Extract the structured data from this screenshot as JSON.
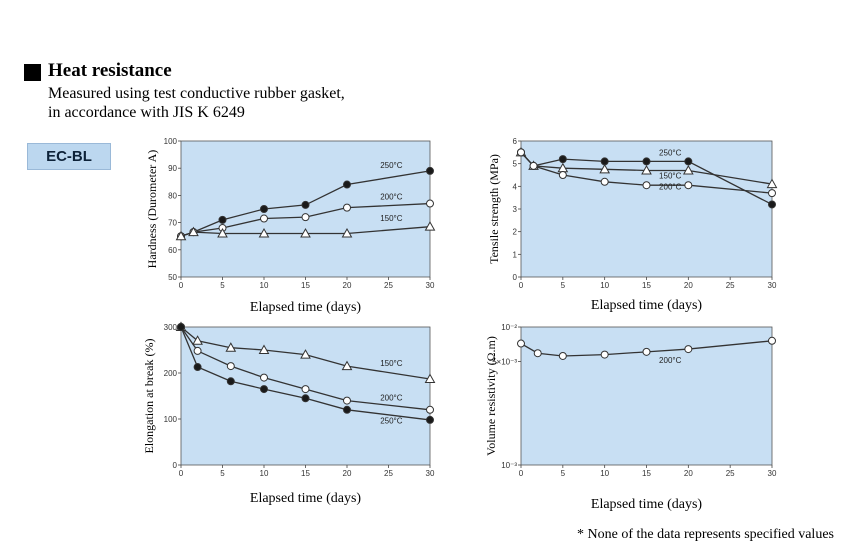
{
  "header": {
    "title": "Heat resistance",
    "description_line1": "Measured using test conductive rubber gasket,",
    "description_line2": "in accordance with JIS K 6249"
  },
  "badge": {
    "label": "EC-BL"
  },
  "note": "* None of the data represents specified values",
  "colors": {
    "plot_bg": "#c8dff3",
    "badge_bg": "#bcd7ef",
    "line": "#333333"
  },
  "chart_data": [
    {
      "id": "hardness",
      "type": "line",
      "ylabel": "Hardness (Durometer A)",
      "xlabel": "Elapsed time (days)",
      "xlim": [
        0,
        30
      ],
      "ylim": [
        50,
        100
      ],
      "x_ticks": [
        0,
        5,
        10,
        15,
        20,
        25,
        30
      ],
      "y_ticks": [
        50,
        60,
        70,
        80,
        90,
        100
      ],
      "y_tick_labels": [
        "50",
        "60",
        "70",
        "80",
        "90",
        "100"
      ],
      "series": [
        {
          "name": "250°C",
          "marker": "filled-circle",
          "x": [
            0,
            1.5,
            5,
            10,
            15,
            20,
            30
          ],
          "y": [
            65,
            66.5,
            71,
            75,
            76.5,
            84,
            89
          ]
        },
        {
          "name": "200°C",
          "marker": "open-circle",
          "x": [
            0,
            1.5,
            5,
            10,
            15,
            20,
            30
          ],
          "y": [
            65,
            66.5,
            68,
            71.5,
            72,
            75.5,
            77
          ]
        },
        {
          "name": "150°C",
          "marker": "open-triangle",
          "x": [
            0,
            1.5,
            5,
            10,
            15,
            20,
            30
          ],
          "y": [
            65,
            66.5,
            66,
            66,
            66,
            66,
            68.5
          ]
        }
      ],
      "annotations": [
        {
          "text": "250°C",
          "x": 24,
          "y": 90
        },
        {
          "text": "200°C",
          "x": 24,
          "y": 78.5
        },
        {
          "text": "150°C",
          "x": 24,
          "y": 70.5
        }
      ]
    },
    {
      "id": "tensile",
      "type": "line",
      "ylabel": "Tensile strength (MPa)",
      "xlabel": "Elapsed time (days)",
      "xlim": [
        0,
        30
      ],
      "ylim": [
        0,
        6
      ],
      "x_ticks": [
        0,
        5,
        10,
        15,
        20,
        25,
        30
      ],
      "y_ticks": [
        0,
        1,
        2,
        3,
        4,
        5,
        6
      ],
      "y_tick_labels": [
        "0",
        "1",
        "2",
        "3",
        "4",
        "5",
        "6"
      ],
      "series": [
        {
          "name": "250°C",
          "marker": "filled-circle",
          "x": [
            0,
            1.5,
            5,
            10,
            15,
            20,
            30
          ],
          "y": [
            5.5,
            4.9,
            5.2,
            5.1,
            5.1,
            5.1,
            3.2
          ]
        },
        {
          "name": "150°C",
          "marker": "open-triangle",
          "x": [
            0,
            1.5,
            5,
            10,
            15,
            20,
            30
          ],
          "y": [
            5.5,
            4.9,
            4.8,
            4.75,
            4.7,
            4.7,
            4.1
          ]
        },
        {
          "name": "200°C",
          "marker": "open-circle",
          "x": [
            0,
            1.5,
            5,
            10,
            15,
            20,
            30
          ],
          "y": [
            5.5,
            4.9,
            4.5,
            4.2,
            4.05,
            4.05,
            3.7
          ]
        }
      ],
      "annotations": [
        {
          "text": "250°C",
          "x": 16.5,
          "y": 5.35
        },
        {
          "text": "150°C",
          "x": 16.5,
          "y": 4.35
        },
        {
          "text": "200°C",
          "x": 16.5,
          "y": 3.85
        }
      ]
    },
    {
      "id": "elongation",
      "type": "line",
      "ylabel": "Elongation at break (%)",
      "xlabel": "Elapsed time (days)",
      "xlim": [
        0,
        30
      ],
      "ylim": [
        0,
        300
      ],
      "x_ticks": [
        0,
        5,
        10,
        15,
        20,
        25,
        30
      ],
      "y_ticks": [
        0,
        100,
        200,
        300
      ],
      "y_tick_labels": [
        "0",
        "100",
        "200",
        "300"
      ],
      "series": [
        {
          "name": "150°C",
          "marker": "open-triangle",
          "x": [
            0,
            2,
            6,
            10,
            15,
            20,
            30
          ],
          "y": [
            300,
            270,
            255,
            250,
            240,
            215,
            187
          ]
        },
        {
          "name": "200°C",
          "marker": "open-circle",
          "x": [
            0,
            2,
            6,
            10,
            15,
            20,
            30
          ],
          "y": [
            300,
            248,
            215,
            190,
            165,
            140,
            120
          ]
        },
        {
          "name": "250°C",
          "marker": "filled-circle",
          "x": [
            0,
            2,
            6,
            10,
            15,
            20,
            30
          ],
          "y": [
            300,
            213,
            182,
            165,
            145,
            120,
            98
          ]
        }
      ],
      "annotations": [
        {
          "text": "150°C",
          "x": 24,
          "y": 215
        },
        {
          "text": "200°C",
          "x": 24,
          "y": 140
        },
        {
          "text": "250°C",
          "x": 24,
          "y": 90
        }
      ]
    },
    {
      "id": "volume",
      "type": "line",
      "ylabel": "Volume resistivity (Ω.m)",
      "xlabel": "Elapsed time (days)",
      "xlim": [
        0,
        30
      ],
      "ylim": [
        0,
        100
      ],
      "x_ticks": [
        0,
        5,
        10,
        15,
        20,
        25,
        30
      ],
      "y_ticks": [
        0,
        75,
        100
      ],
      "y_tick_labels": [
        "10⁻³",
        "5×10⁻³",
        "10⁻²"
      ],
      "series": [
        {
          "name": "200°C",
          "marker": "open-circle",
          "x": [
            0,
            2,
            5,
            10,
            15,
            20,
            30
          ],
          "y": [
            88,
            81,
            79,
            80,
            82,
            84,
            90
          ]
        }
      ],
      "annotations": [
        {
          "text": "200°C",
          "x": 16.5,
          "y": 74
        }
      ]
    }
  ]
}
